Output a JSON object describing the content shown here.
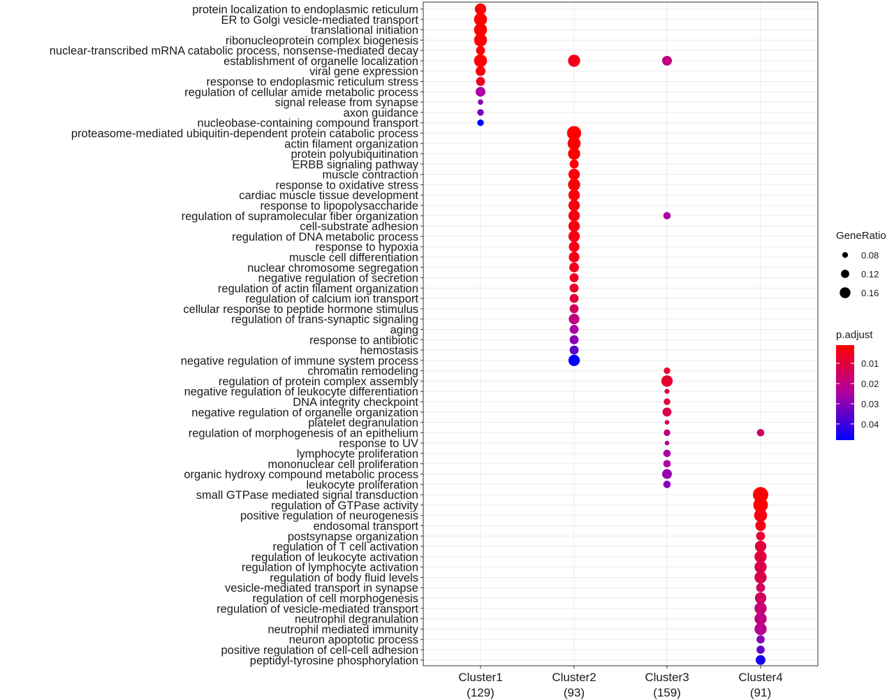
{
  "chart_data": {
    "type": "scatter",
    "kind": "dot plot (GO enrichment comparison)",
    "title": "",
    "xlabel": "",
    "ylabel": "",
    "grid": true,
    "legend_position": "right",
    "clusters": [
      {
        "name": "Cluster1",
        "count": "(129)"
      },
      {
        "name": "Cluster2",
        "count": "(93)"
      },
      {
        "name": "Cluster3",
        "count": "(159)"
      },
      {
        "name": "Cluster4",
        "count": "(91)"
      }
    ],
    "terms": [
      "protein localization to endoplasmic reticulum",
      "ER to Golgi vesicle-mediated transport",
      "translational initiation",
      "ribonucleoprotein complex biogenesis",
      "nuclear-transcribed mRNA catabolic process, nonsense-mediated decay",
      "establishment of organelle localization",
      "viral gene expression",
      "response to endoplasmic reticulum stress",
      "regulation of cellular amide metabolic process",
      "signal release from synapse",
      "axon guidance",
      "nucleobase-containing compound transport",
      "proteasome-mediated ubiquitin-dependent protein catabolic process",
      "actin filament organization",
      "protein polyubiquitination",
      "ERBB signaling pathway",
      "muscle contraction",
      "response to oxidative stress",
      "cardiac muscle tissue development",
      "response to lipopolysaccharide",
      "regulation of supramolecular fiber organization",
      "cell-substrate adhesion",
      "regulation of DNA metabolic process",
      "response to hypoxia",
      "muscle cell differentiation",
      "nuclear chromosome segregation",
      "negative regulation of secretion",
      "regulation of actin filament organization",
      "regulation of calcium ion transport",
      "cellular response to peptide hormone stimulus",
      "regulation of trans-synaptic signaling",
      "aging",
      "response to antibiotic",
      "hemostasis",
      "negative regulation of immune system process",
      "chromatin remodeling",
      "regulation of protein complex assembly",
      "negative regulation of leukocyte differentiation",
      "DNA integrity checkpoint",
      "negative regulation of organelle organization",
      "platelet degranulation",
      "regulation of morphogenesis of an epithelium",
      "response to UV",
      "lymphocyte proliferation",
      "mononuclear cell proliferation",
      "organic hydroxy compound metabolic process",
      "leukocyte proliferation",
      "small GTPase mediated signal transduction",
      "regulation of GTPase activity",
      "positive regulation of neurogenesis",
      "endosomal transport",
      "postsynapse organization",
      "regulation of T cell activation",
      "regulation of leukocyte activation",
      "regulation of lymphocyte activation",
      "regulation of body fluid levels",
      "vesicle-mediated transport in synapse",
      "regulation of cell morphogenesis",
      "regulation of vesicle-mediated transport",
      "neutrophil degranulation",
      "neutrophil mediated immunity",
      "neuron apoptotic process",
      "positive regulation of cell-cell adhesion",
      "peptidyl-tyrosine phosphorylation"
    ],
    "points": [
      {
        "cluster": "Cluster1",
        "term": "protein localization to endoplasmic reticulum",
        "gene_ratio": 0.13,
        "p_adjust": 0.001
      },
      {
        "cluster": "Cluster1",
        "term": "ER to Golgi vesicle-mediated transport",
        "gene_ratio": 0.15,
        "p_adjust": 0.001
      },
      {
        "cluster": "Cluster1",
        "term": "translational initiation",
        "gene_ratio": 0.15,
        "p_adjust": 0.001
      },
      {
        "cluster": "Cluster1",
        "term": "ribonucleoprotein complex biogenesis",
        "gene_ratio": 0.15,
        "p_adjust": 0.001
      },
      {
        "cluster": "Cluster1",
        "term": "nuclear-transcribed mRNA catabolic process, nonsense-mediated decay",
        "gene_ratio": 0.1,
        "p_adjust": 0.002
      },
      {
        "cluster": "Cluster1",
        "term": "establishment of organelle localization",
        "gene_ratio": 0.15,
        "p_adjust": 0.002
      },
      {
        "cluster": "Cluster1",
        "term": "viral gene expression",
        "gene_ratio": 0.11,
        "p_adjust": 0.003
      },
      {
        "cluster": "Cluster1",
        "term": "response to endoplasmic reticulum stress",
        "gene_ratio": 0.1,
        "p_adjust": 0.006
      },
      {
        "cluster": "Cluster1",
        "term": "regulation of cellular amide metabolic process",
        "gene_ratio": 0.11,
        "p_adjust": 0.025
      },
      {
        "cluster": "Cluster1",
        "term": "signal release from synapse",
        "gene_ratio": 0.055,
        "p_adjust": 0.03
      },
      {
        "cluster": "Cluster1",
        "term": "axon guidance",
        "gene_ratio": 0.07,
        "p_adjust": 0.033
      },
      {
        "cluster": "Cluster1",
        "term": "nucleobase-containing compound transport",
        "gene_ratio": 0.07,
        "p_adjust": 0.048
      },
      {
        "cluster": "Cluster2",
        "term": "establishment of organelle localization",
        "gene_ratio": 0.14,
        "p_adjust": 0.005
      },
      {
        "cluster": "Cluster2",
        "term": "proteasome-mediated ubiquitin-dependent protein catabolic process",
        "gene_ratio": 0.165,
        "p_adjust": 0.001
      },
      {
        "cluster": "Cluster2",
        "term": "actin filament organization",
        "gene_ratio": 0.15,
        "p_adjust": 0.001
      },
      {
        "cluster": "Cluster2",
        "term": "protein polyubiquitination",
        "gene_ratio": 0.14,
        "p_adjust": 0.001
      },
      {
        "cluster": "Cluster2",
        "term": "ERBB signaling pathway",
        "gene_ratio": 0.1,
        "p_adjust": 0.002
      },
      {
        "cluster": "Cluster2",
        "term": "muscle contraction",
        "gene_ratio": 0.13,
        "p_adjust": 0.002
      },
      {
        "cluster": "Cluster2",
        "term": "response to oxidative stress",
        "gene_ratio": 0.14,
        "p_adjust": 0.002
      },
      {
        "cluster": "Cluster2",
        "term": "cardiac muscle tissue development",
        "gene_ratio": 0.13,
        "p_adjust": 0.002
      },
      {
        "cluster": "Cluster2",
        "term": "response to lipopolysaccharide",
        "gene_ratio": 0.13,
        "p_adjust": 0.003
      },
      {
        "cluster": "Cluster2",
        "term": "regulation of supramolecular fiber organization",
        "gene_ratio": 0.13,
        "p_adjust": 0.003
      },
      {
        "cluster": "Cluster2",
        "term": "cell-substrate adhesion",
        "gene_ratio": 0.13,
        "p_adjust": 0.003
      },
      {
        "cluster": "Cluster2",
        "term": "regulation of DNA metabolic process",
        "gene_ratio": 0.13,
        "p_adjust": 0.004
      },
      {
        "cluster": "Cluster2",
        "term": "response to hypoxia",
        "gene_ratio": 0.12,
        "p_adjust": 0.004
      },
      {
        "cluster": "Cluster2",
        "term": "muscle cell differentiation",
        "gene_ratio": 0.12,
        "p_adjust": 0.004
      },
      {
        "cluster": "Cluster2",
        "term": "nuclear chromosome segregation",
        "gene_ratio": 0.11,
        "p_adjust": 0.005
      },
      {
        "cluster": "Cluster2",
        "term": "negative regulation of secretion",
        "gene_ratio": 0.1,
        "p_adjust": 0.006
      },
      {
        "cluster": "Cluster2",
        "term": "regulation of actin filament organization",
        "gene_ratio": 0.1,
        "p_adjust": 0.007
      },
      {
        "cluster": "Cluster2",
        "term": "regulation of calcium ion transport",
        "gene_ratio": 0.1,
        "p_adjust": 0.009
      },
      {
        "cluster": "Cluster2",
        "term": "cellular response to peptide hormone stimulus",
        "gene_ratio": 0.1,
        "p_adjust": 0.015
      },
      {
        "cluster": "Cluster2",
        "term": "regulation of trans-synaptic signaling",
        "gene_ratio": 0.12,
        "p_adjust": 0.02
      },
      {
        "cluster": "Cluster2",
        "term": "aging",
        "gene_ratio": 0.1,
        "p_adjust": 0.025
      },
      {
        "cluster": "Cluster2",
        "term": "response to antibiotic",
        "gene_ratio": 0.1,
        "p_adjust": 0.03
      },
      {
        "cluster": "Cluster2",
        "term": "hemostasis",
        "gene_ratio": 0.1,
        "p_adjust": 0.035
      },
      {
        "cluster": "Cluster2",
        "term": "negative regulation of immune system process",
        "gene_ratio": 0.13,
        "p_adjust": 0.048
      },
      {
        "cluster": "Cluster3",
        "term": "establishment of organelle localization",
        "gene_ratio": 0.11,
        "p_adjust": 0.02
      },
      {
        "cluster": "Cluster3",
        "term": "regulation of supramolecular fiber organization",
        "gene_ratio": 0.08,
        "p_adjust": 0.025
      },
      {
        "cluster": "Cluster3",
        "term": "chromatin remodeling",
        "gene_ratio": 0.07,
        "p_adjust": 0.008
      },
      {
        "cluster": "Cluster3",
        "term": "regulation of protein complex assembly",
        "gene_ratio": 0.13,
        "p_adjust": 0.008
      },
      {
        "cluster": "Cluster3",
        "term": "negative regulation of leukocyte differentiation",
        "gene_ratio": 0.05,
        "p_adjust": 0.01
      },
      {
        "cluster": "Cluster3",
        "term": "DNA integrity checkpoint",
        "gene_ratio": 0.07,
        "p_adjust": 0.01
      },
      {
        "cluster": "Cluster3",
        "term": "negative regulation of organelle organization",
        "gene_ratio": 0.1,
        "p_adjust": 0.012
      },
      {
        "cluster": "Cluster3",
        "term": "platelet degranulation",
        "gene_ratio": 0.045,
        "p_adjust": 0.015
      },
      {
        "cluster": "Cluster3",
        "term": "regulation of morphogenesis of an epithelium",
        "gene_ratio": 0.07,
        "p_adjust": 0.02
      },
      {
        "cluster": "Cluster3",
        "term": "response to UV",
        "gene_ratio": 0.045,
        "p_adjust": 0.02
      },
      {
        "cluster": "Cluster3",
        "term": "lymphocyte proliferation",
        "gene_ratio": 0.08,
        "p_adjust": 0.025
      },
      {
        "cluster": "Cluster3",
        "term": "mononuclear cell proliferation",
        "gene_ratio": 0.08,
        "p_adjust": 0.025
      },
      {
        "cluster": "Cluster3",
        "term": "organic hydroxy compound metabolic process",
        "gene_ratio": 0.11,
        "p_adjust": 0.028
      },
      {
        "cluster": "Cluster3",
        "term": "leukocyte proliferation",
        "gene_ratio": 0.08,
        "p_adjust": 0.03
      },
      {
        "cluster": "Cluster4",
        "term": "regulation of morphogenesis of an epithelium",
        "gene_ratio": 0.08,
        "p_adjust": 0.015
      },
      {
        "cluster": "Cluster4",
        "term": "small GTPase mediated signal transduction",
        "gene_ratio": 0.18,
        "p_adjust": 0.001
      },
      {
        "cluster": "Cluster4",
        "term": "regulation of GTPase activity",
        "gene_ratio": 0.17,
        "p_adjust": 0.001
      },
      {
        "cluster": "Cluster4",
        "term": "positive regulation of neurogenesis",
        "gene_ratio": 0.15,
        "p_adjust": 0.003
      },
      {
        "cluster": "Cluster4",
        "term": "endosomal transport",
        "gene_ratio": 0.12,
        "p_adjust": 0.004
      },
      {
        "cluster": "Cluster4",
        "term": "postsynapse organization",
        "gene_ratio": 0.1,
        "p_adjust": 0.008
      },
      {
        "cluster": "Cluster4",
        "term": "regulation of T cell activation",
        "gene_ratio": 0.13,
        "p_adjust": 0.01
      },
      {
        "cluster": "Cluster4",
        "term": "regulation of leukocyte activation",
        "gene_ratio": 0.14,
        "p_adjust": 0.01
      },
      {
        "cluster": "Cluster4",
        "term": "regulation of lymphocyte activation",
        "gene_ratio": 0.14,
        "p_adjust": 0.012
      },
      {
        "cluster": "Cluster4",
        "term": "regulation of body fluid levels",
        "gene_ratio": 0.14,
        "p_adjust": 0.012
      },
      {
        "cluster": "Cluster4",
        "term": "vesicle-mediated transport in synapse",
        "gene_ratio": 0.1,
        "p_adjust": 0.015
      },
      {
        "cluster": "Cluster4",
        "term": "regulation of cell morphogenesis",
        "gene_ratio": 0.13,
        "p_adjust": 0.015
      },
      {
        "cluster": "Cluster4",
        "term": "regulation of vesicle-mediated transport",
        "gene_ratio": 0.14,
        "p_adjust": 0.018
      },
      {
        "cluster": "Cluster4",
        "term": "neutrophil degranulation",
        "gene_ratio": 0.14,
        "p_adjust": 0.02
      },
      {
        "cluster": "Cluster4",
        "term": "neutrophil mediated immunity",
        "gene_ratio": 0.14,
        "p_adjust": 0.022
      },
      {
        "cluster": "Cluster4",
        "term": "neuron apoptotic process",
        "gene_ratio": 0.09,
        "p_adjust": 0.03
      },
      {
        "cluster": "Cluster4",
        "term": "positive regulation of cell-cell adhesion",
        "gene_ratio": 0.09,
        "p_adjust": 0.035
      },
      {
        "cluster": "Cluster4",
        "term": "peptidyl-tyrosine phosphorylation",
        "gene_ratio": 0.11,
        "p_adjust": 0.045
      }
    ],
    "size_legend": {
      "title": "GeneRatio",
      "values": [
        0.08,
        0.12,
        0.16
      ],
      "labels": [
        "0.08",
        "0.12",
        "0.16"
      ]
    },
    "color_legend": {
      "title": "p.adjust",
      "range": [
        0.001,
        0.048
      ],
      "ticks": [
        0.01,
        0.02,
        0.03,
        0.04
      ],
      "labels": [
        "0.01",
        "0.02",
        "0.03",
        "0.04"
      ],
      "low_color": "#ff0000",
      "high_color": "#0000ff"
    }
  }
}
